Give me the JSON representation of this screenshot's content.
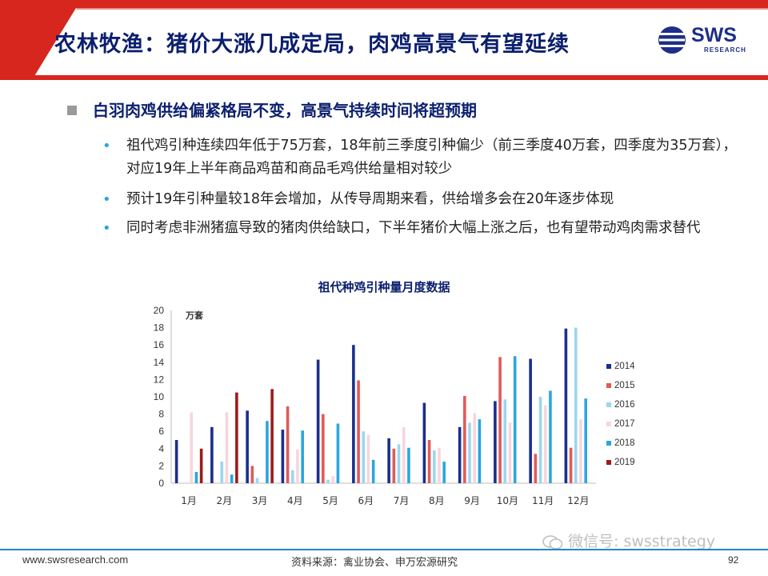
{
  "header": {
    "title": "农林牧渔：猪价大涨几成定局，肉鸡高景气有望延续",
    "logo_text": "SWS",
    "logo_sub": "RESEARCH"
  },
  "content": {
    "heading": "白羽肉鸡供给偏紧格局不变，高景气持续时间将超预期",
    "bullets": [
      "祖代鸡引种连续四年低于75万套，18年前三季度引种偏少（前三季度40万套，四季度为35万套），对应19年上半年商品鸡苗和商品毛鸡供给量相对较少",
      "预计19年引种量较18年会增加，从传导周期来看，供给增多会在20年逐步体现",
      "同时考虑非洲猪瘟导致的猪肉供给缺口，下半年猪价大幅上涨之后，也有望带动鸡肉需求替代"
    ]
  },
  "chart_data": {
    "type": "bar",
    "title": "祖代种鸡引种量月度数据",
    "unit_label": "万套",
    "categories": [
      "1月",
      "2月",
      "3月",
      "4月",
      "5月",
      "6月",
      "7月",
      "8月",
      "9月",
      "10月",
      "11月",
      "12月"
    ],
    "ylim": [
      0,
      20
    ],
    "yticks": [
      0,
      2,
      4,
      6,
      8,
      10,
      12,
      14,
      16,
      18,
      20
    ],
    "grid": false,
    "legend_position": "right",
    "series": [
      {
        "name": "2014",
        "color": "#1a2f8c",
        "values": [
          5.0,
          6.5,
          8.4,
          6.2,
          14.3,
          16.0,
          5.2,
          9.3,
          6.5,
          9.5,
          14.4,
          17.9
        ]
      },
      {
        "name": "2015",
        "color": "#e05a5a",
        "values": [
          0,
          0,
          2.0,
          8.9,
          8.0,
          11.9,
          4.0,
          5.0,
          10.1,
          14.6,
          3.4,
          4.1
        ]
      },
      {
        "name": "2016",
        "color": "#9cd6ef",
        "values": [
          0,
          2.5,
          0.6,
          1.5,
          0.4,
          6.0,
          4.5,
          3.8,
          7.0,
          9.7,
          10.0,
          18.0
        ]
      },
      {
        "name": "2017",
        "color": "#f7d5dc",
        "values": [
          8.2,
          8.2,
          0,
          3.9,
          0.8,
          5.6,
          6.5,
          4.1,
          8.1,
          7.0,
          9.0,
          7.4
        ]
      },
      {
        "name": "2018",
        "color": "#29a7dd",
        "values": [
          1.3,
          1.0,
          7.2,
          6.1,
          6.9,
          2.7,
          4.1,
          2.5,
          7.4,
          14.7,
          10.7,
          9.8
        ]
      },
      {
        "name": "2019",
        "color": "#9e1b1b",
        "values": [
          4.0,
          10.5,
          10.9,
          0,
          0,
          0,
          0,
          0,
          0,
          0,
          0,
          0
        ]
      }
    ]
  },
  "footer": {
    "url": "www.swsresearch.com",
    "source": "资料来源：禽业协会、申万宏源研究",
    "page": "92",
    "watermark": "微信号: swsstrategy"
  },
  "colors": {
    "banner_red": "#d7261e",
    "title_navy": "#0b1f6e",
    "accent_blue": "#1a8bcf"
  }
}
